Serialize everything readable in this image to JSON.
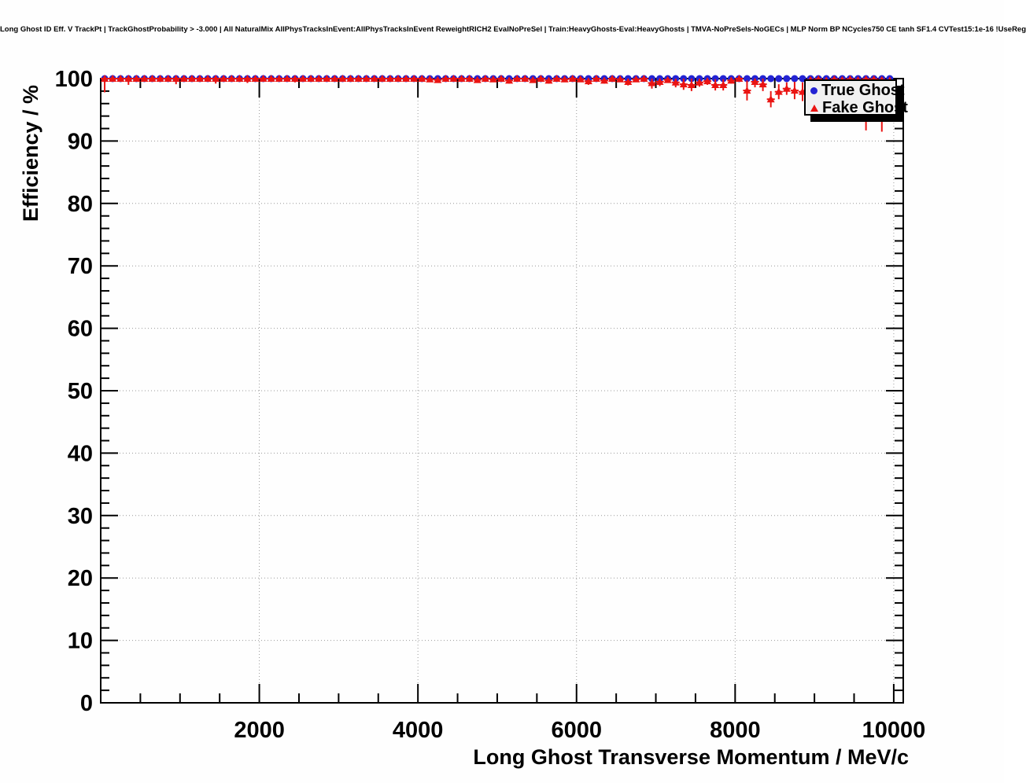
{
  "header": {
    "title": "Long Ghost ID Eff. V TrackPt | TrackGhostProbability > -3.000 | All NaturalMix AllPhysTracksInEvent:AllPhysTracksInEvent ReweightRICH2 EvalNoPreSel | Train:HeavyGhosts-Eval:HeavyGhosts | TMVA-NoPreSels-NoGECs | MLP Norm BP NCycles750 CE tanh SF1.4 CVTest15:1e-16 !UseReg"
  },
  "chart_data": {
    "type": "scatter",
    "title": "Long Ghost ID Eff. V TrackPt",
    "xlabel": "Long Ghost Transverse Momentum / MeV/c",
    "ylabel": "Efficiency / %",
    "grid": "dotted lines at major ticks",
    "axis": {
      "x": {
        "min": 0,
        "max": 10120,
        "major_tick_step": 2000,
        "minor_tick_step": 500,
        "labeled_ticks": [
          2000,
          4000,
          6000,
          8000,
          10000
        ]
      },
      "y": {
        "min": 0,
        "max": 100,
        "major_tick_step": 10,
        "minor_tick_step": 2,
        "labeled_ticks": [
          0,
          10,
          20,
          30,
          40,
          50,
          60,
          70,
          80,
          90,
          100
        ]
      }
    },
    "x_bins": {
      "start": 50,
      "step": 100,
      "count": 100
    },
    "legend": {
      "position": "top-right",
      "entries": [
        {
          "label": "True Ghost",
          "marker": "circle",
          "color": "#2323d3"
        },
        {
          "label": "Fake Ghost",
          "marker": "triangle",
          "color": "#ea1412"
        }
      ]
    },
    "series": [
      {
        "name": "True Ghost",
        "marker": "circle",
        "color": "#2323d3",
        "y": [
          100,
          100,
          100,
          100,
          100,
          100,
          100,
          100,
          100,
          100,
          100,
          100,
          100,
          100,
          100,
          100,
          100,
          100,
          100,
          100,
          100,
          100,
          100,
          100,
          100,
          100,
          100,
          100,
          100,
          100,
          100,
          100,
          100,
          100,
          100,
          100,
          100,
          100,
          100,
          100,
          100,
          100,
          100,
          100,
          100,
          100,
          100,
          100,
          100,
          100,
          100,
          100,
          100,
          100,
          100,
          100,
          100,
          100,
          100,
          100,
          100,
          100,
          100,
          100,
          100,
          100,
          100,
          100,
          100,
          100,
          100,
          100,
          100,
          100,
          100,
          100,
          100,
          100,
          100,
          100,
          100,
          100,
          100,
          100,
          100,
          100,
          100,
          100,
          100,
          100,
          100,
          100,
          100,
          100,
          100,
          100,
          100,
          100,
          100,
          100
        ],
        "err_lo": []
      },
      {
        "name": "Fake Ghost",
        "marker": "triangle",
        "color": "#ea1412",
        "y": [
          100,
          100,
          100,
          100,
          100,
          100,
          100,
          100,
          100,
          100,
          100,
          100,
          100,
          100,
          100,
          100,
          100,
          100,
          100,
          100,
          100,
          100,
          100,
          100,
          100,
          100,
          100,
          100,
          100,
          100,
          100,
          100,
          100,
          100,
          100,
          100,
          100,
          100,
          100,
          100,
          100,
          99.9,
          99.8,
          100,
          100,
          100,
          100,
          99.8,
          100,
          99.9,
          100,
          99.7,
          100,
          100,
          99.8,
          100,
          99.7,
          100,
          99.9,
          100,
          99.9,
          99.6,
          100,
          99.7,
          100,
          99.9,
          99.5,
          99.9,
          100,
          99.3,
          99.5,
          99.8,
          99.4,
          99.1,
          99.0,
          99.4,
          99.6,
          99.0,
          99.0,
          99.7,
          100,
          98.1,
          99.5,
          99.1,
          96.7,
          97.9,
          98.4,
          98.1,
          97.9,
          99.8,
          99.9,
          99.7,
          99.9,
          99.8,
          99.9,
          99.8,
          99.9,
          99.9,
          99.8,
          99.7
        ],
        "err_lo": [
          2.2,
          0,
          0,
          1.0,
          0,
          0,
          0,
          0,
          0,
          0.9,
          0,
          0,
          0,
          0,
          0.8,
          0,
          0,
          0,
          0.7,
          0,
          0,
          0,
          0,
          0,
          0.6,
          0,
          0,
          0,
          0,
          0,
          0,
          0.5,
          0,
          0,
          0,
          0,
          0,
          0,
          0.5,
          0,
          0,
          0,
          0.4,
          0,
          0.4,
          0,
          0,
          0.4,
          0,
          0,
          0,
          0.5,
          0,
          0,
          0.4,
          0,
          0.5,
          0,
          0,
          0,
          0,
          0.6,
          0,
          0.5,
          0,
          0,
          0.6,
          0,
          0,
          0.9,
          0.7,
          0,
          0.8,
          0.9,
          1.0,
          0.7,
          0.6,
          0.9,
          0.9,
          0.5,
          0.5,
          1.6,
          0.9,
          1.1,
          1.3,
          1.2,
          1.0,
          1.4,
          1.5,
          1.2,
          1.5,
          2.0,
          1.8,
          2.0,
          2.2,
          2.5,
          8.2,
          2.5,
          8.3,
          3.0
        ]
      }
    ]
  },
  "style": {
    "frame_color": "#000000",
    "grid_color": "#999999",
    "tick_label_color": "#000000",
    "legend_bg": "#f1f1f1"
  }
}
